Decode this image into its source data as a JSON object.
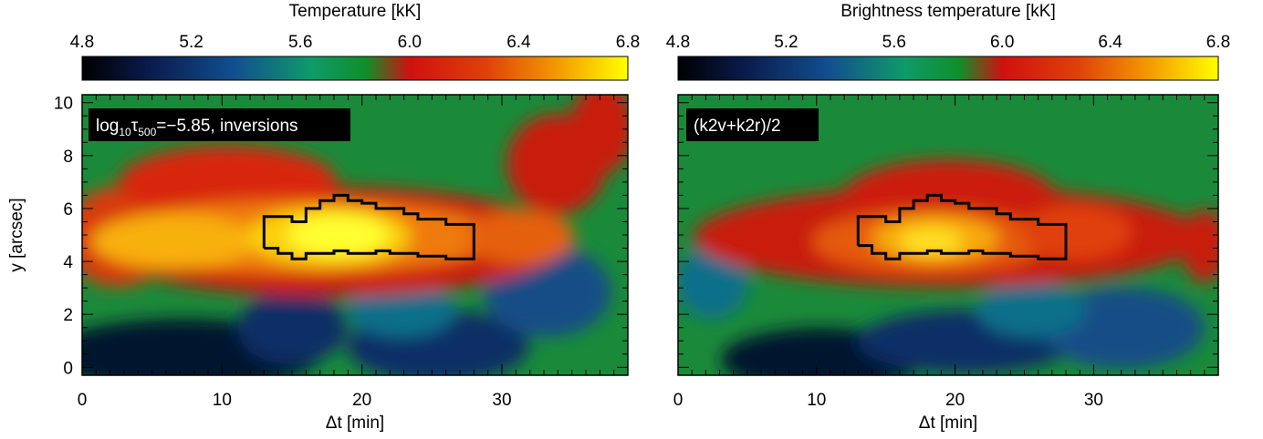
{
  "chart_data": [
    {
      "type": "heatmap",
      "title": "",
      "colorbar": {
        "title": "Temperature [kK]",
        "range": [
          4.8,
          6.8
        ],
        "ticks": [
          "4.8",
          "5.2",
          "5.6",
          "6.0",
          "6.4",
          "6.8"
        ]
      },
      "panel_label_parts": {
        "pre": "log",
        "sub1": "10",
        "mid": "τ",
        "sub2": "500",
        "post": "=−5.85, inversions"
      },
      "xlabel": "Δt [min]",
      "ylabel": "y [arcsec]",
      "xlim": [
        0,
        39
      ],
      "ylim": [
        -0.3,
        10.3
      ],
      "xticks": [
        "0",
        "10",
        "20",
        "30"
      ],
      "yticks": [
        "0",
        "2",
        "4",
        "6",
        "8",
        "10"
      ],
      "colormap": "black-blue-green-red-yellow",
      "features": {
        "hot_band": {
          "y_center": 5.0,
          "x_range": [
            0,
            39
          ],
          "peak_temp_kK": 6.6,
          "peak_at": [
            18,
            4.8
          ]
        },
        "cool_region": {
          "y_range": [
            0,
            2.5
          ],
          "min_temp_kK": 4.9,
          "min_at": [
            8,
            0.5
          ]
        },
        "contour": [
          [
            13,
            4.5
          ],
          [
            13,
            5.7
          ],
          [
            15,
            5.7
          ],
          [
            15,
            5.5
          ],
          [
            16,
            5.5
          ],
          [
            16,
            6.0
          ],
          [
            17,
            6.0
          ],
          [
            17,
            6.3
          ],
          [
            18,
            6.3
          ],
          [
            18,
            6.5
          ],
          [
            19,
            6.5
          ],
          [
            19,
            6.3
          ],
          [
            20,
            6.3
          ],
          [
            20,
            6.2
          ],
          [
            21,
            6.2
          ],
          [
            21,
            6.0
          ],
          [
            23,
            6.0
          ],
          [
            23,
            5.8
          ],
          [
            24,
            5.8
          ],
          [
            24,
            5.6
          ],
          [
            26,
            5.6
          ],
          [
            26,
            5.4
          ],
          [
            28,
            5.4
          ],
          [
            28,
            4.1
          ],
          [
            26,
            4.1
          ],
          [
            26,
            4.2
          ],
          [
            24,
            4.2
          ],
          [
            24,
            4.3
          ],
          [
            22,
            4.3
          ],
          [
            22,
            4.4
          ],
          [
            21,
            4.4
          ],
          [
            21,
            4.3
          ],
          [
            19,
            4.3
          ],
          [
            19,
            4.4
          ],
          [
            18,
            4.4
          ],
          [
            18,
            4.3
          ],
          [
            16,
            4.3
          ],
          [
            16,
            4.1
          ],
          [
            15,
            4.1
          ],
          [
            15,
            4.3
          ],
          [
            14,
            4.3
          ],
          [
            14,
            4.5
          ]
        ]
      }
    },
    {
      "type": "heatmap",
      "title": "",
      "colorbar": {
        "title": "Brightness temperature [kK]",
        "range": [
          4.8,
          6.8
        ],
        "ticks": [
          "4.8",
          "5.2",
          "5.6",
          "6.0",
          "6.4",
          "6.8"
        ]
      },
      "panel_label": "(k2v+k2r)/2",
      "xlabel": "Δt [min]",
      "ylabel": "",
      "xlim": [
        0,
        39
      ],
      "ylim": [
        -0.3,
        10.3
      ],
      "xticks": [
        "0",
        "10",
        "20",
        "30"
      ],
      "yticks": [],
      "colormap": "black-blue-green-red-yellow",
      "features": {
        "hot_band": {
          "y_center": 4.9,
          "x_range": [
            0,
            39
          ],
          "peak_temp_kK": 6.3,
          "peak_at": [
            18,
            4.7
          ]
        },
        "cool_region": {
          "y_range": [
            0,
            2.8
          ],
          "min_temp_kK": 4.9,
          "min_at": [
            10,
            0.6
          ]
        },
        "contour": [
          [
            13,
            4.6
          ],
          [
            13,
            5.7
          ],
          [
            15,
            5.7
          ],
          [
            15,
            5.5
          ],
          [
            16,
            5.5
          ],
          [
            16,
            6.0
          ],
          [
            17,
            6.0
          ],
          [
            17,
            6.3
          ],
          [
            18,
            6.3
          ],
          [
            18,
            6.5
          ],
          [
            19,
            6.5
          ],
          [
            19,
            6.3
          ],
          [
            20,
            6.3
          ],
          [
            20,
            6.2
          ],
          [
            21,
            6.2
          ],
          [
            21,
            6.0
          ],
          [
            23,
            6.0
          ],
          [
            23,
            5.8
          ],
          [
            24,
            5.8
          ],
          [
            24,
            5.6
          ],
          [
            26,
            5.6
          ],
          [
            26,
            5.4
          ],
          [
            28,
            5.4
          ],
          [
            28,
            4.1
          ],
          [
            26,
            4.1
          ],
          [
            26,
            4.2
          ],
          [
            24,
            4.2
          ],
          [
            24,
            4.3
          ],
          [
            22,
            4.3
          ],
          [
            22,
            4.4
          ],
          [
            21,
            4.4
          ],
          [
            21,
            4.3
          ],
          [
            19,
            4.3
          ],
          [
            19,
            4.4
          ],
          [
            18,
            4.4
          ],
          [
            18,
            4.3
          ],
          [
            16,
            4.3
          ],
          [
            16,
            4.1
          ],
          [
            15,
            4.1
          ],
          [
            15,
            4.3
          ],
          [
            14,
            4.3
          ],
          [
            14,
            4.6
          ]
        ]
      }
    }
  ]
}
